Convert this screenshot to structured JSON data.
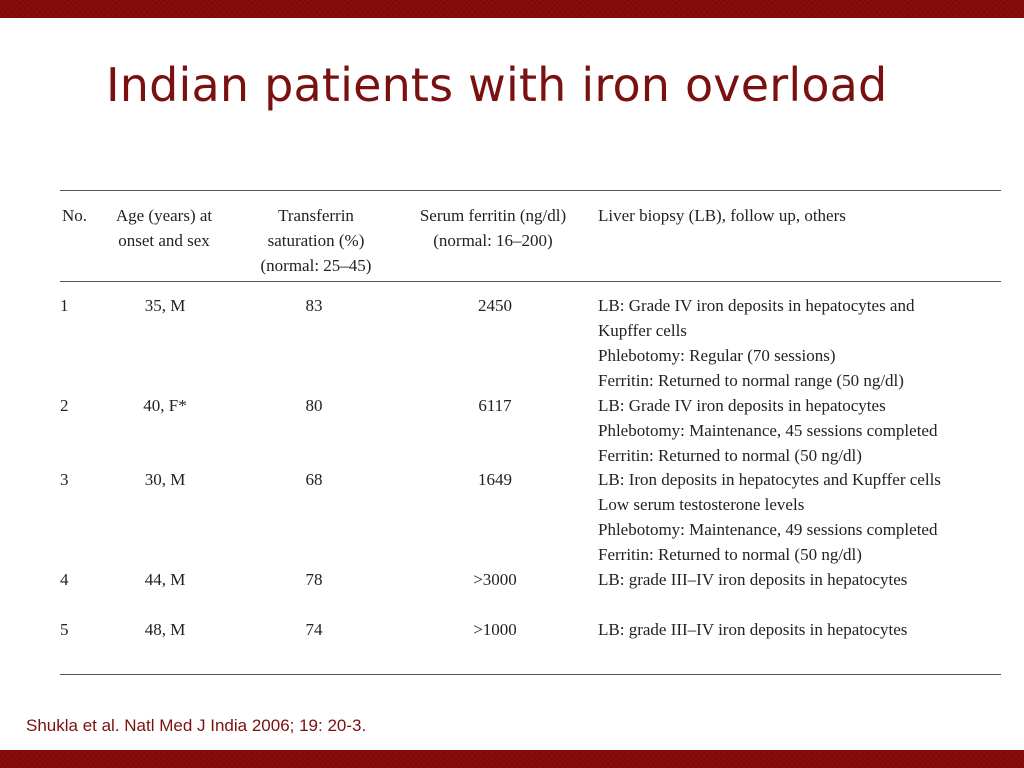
{
  "title": "Indian patients with iron overload",
  "table": {
    "headers": {
      "no": "No.",
      "age": [
        "Age (years) at",
        "onset and sex"
      ],
      "tsat": [
        "Transferrin",
        "saturation (%)",
        "(normal: 25–45)"
      ],
      "ferritin": [
        "Serum ferritin (ng/dl)",
        "(normal: 16–200)"
      ],
      "lb": "Liver biopsy (LB), follow up, others"
    },
    "rows": [
      {
        "no": "1",
        "age": "35, M",
        "tsat": "83",
        "ferritin": "2450",
        "lb": [
          "LB: Grade IV iron deposits in hepatocytes and",
          "Kupffer cells",
          "Phlebotomy: Regular (70 sessions)",
          "Ferritin: Returned to normal range (50 ng/dl)"
        ]
      },
      {
        "no": "2",
        "age": "40, F*",
        "tsat": "80",
        "ferritin": "6117",
        "lb": [
          "LB: Grade IV iron deposits in hepatocytes",
          "Phlebotomy: Maintenance, 45 sessions completed",
          "Ferritin: Returned to normal (50 ng/dl)"
        ]
      },
      {
        "no": "3",
        "age": "30, M",
        "tsat": "68",
        "ferritin": "1649",
        "lb": [
          "LB: Iron deposits in hepatocytes and Kupffer cells",
          "Low serum testosterone levels",
          "Phlebotomy: Maintenance, 49 sessions completed",
          "Ferritin: Returned to normal (50 ng/dl)"
        ]
      },
      {
        "no": "4",
        "age": "44, M",
        "tsat": "78",
        "ferritin": ">3000",
        "lb": [
          "LB: grade III–IV iron deposits in hepatocytes"
        ]
      },
      {
        "no": "5",
        "age": "48, M",
        "tsat": "74",
        "ferritin": ">1000",
        "lb": [
          "LB: grade III–IV iron deposits in hepatocytes"
        ]
      }
    ]
  },
  "citation": "Shukla et al. Natl Med J India 2006; 19: 20-3.",
  "colors": {
    "accent": "#7a1010",
    "bar": "#8b0c0c",
    "rule": "#555555"
  }
}
